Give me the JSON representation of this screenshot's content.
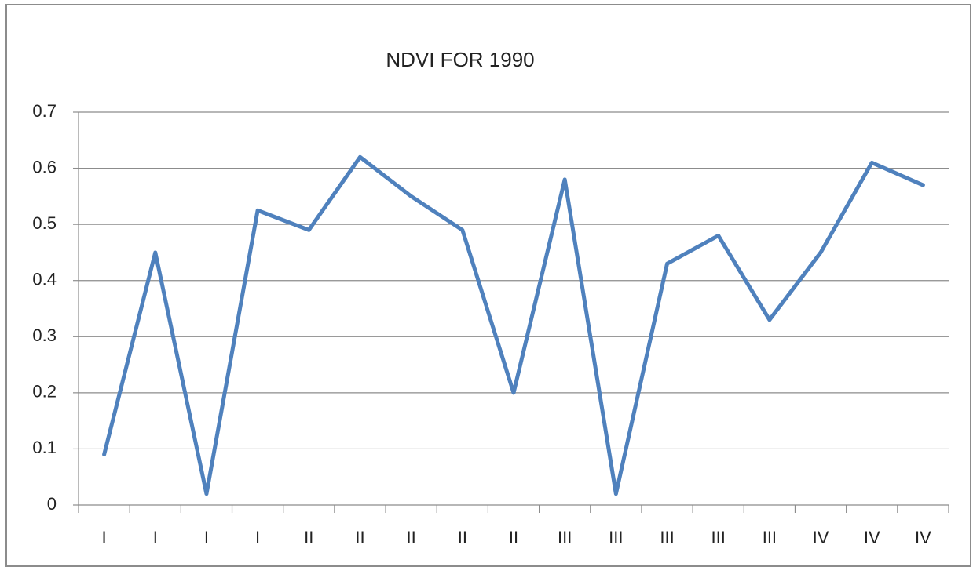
{
  "chart_data": {
    "type": "line",
    "title": "NDVI FOR 1990",
    "categories": [
      "I",
      "I",
      "I",
      "I",
      "II",
      "II",
      "II",
      "II",
      "II",
      "III",
      "III",
      "III",
      "III",
      "III",
      "IV",
      "IV",
      "IV"
    ],
    "values": [
      0.09,
      0.45,
      0.02,
      0.525,
      0.49,
      0.62,
      0.55,
      0.49,
      0.2,
      0.58,
      0.02,
      0.43,
      0.48,
      0.33,
      0.45,
      0.61,
      0.57
    ],
    "color": "#4f81bd",
    "ylim": [
      0,
      0.7
    ],
    "yticks": [
      0,
      0.1,
      0.2,
      0.3,
      0.4,
      0.5,
      0.6,
      0.7
    ],
    "grid": true
  }
}
